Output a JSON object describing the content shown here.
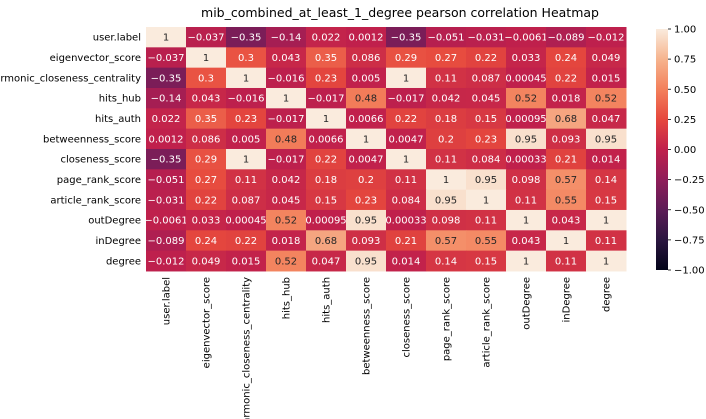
{
  "chart_data": {
    "type": "heatmap",
    "title": "mib_combined_at_least_1_degree pearson correlation Heatmap",
    "rows": [
      "user.label",
      "eigenvector_score",
      "harmonic_closeness_centrality",
      "hits_hub",
      "hits_auth",
      "betweenness_score",
      "closeness_score",
      "page_rank_score",
      "article_rank_score",
      "outDegree",
      "inDegree",
      "degree"
    ],
    "columns": [
      "user.label",
      "eigenvector_score",
      "harmonic_closeness_centrality",
      "hits_hub",
      "hits_auth",
      "betweenness_score",
      "closeness_score",
      "page_rank_score",
      "article_rank_score",
      "outDegree",
      "inDegree",
      "degree"
    ],
    "values": [
      [
        1,
        -0.037,
        -0.35,
        -0.14,
        0.022,
        0.0012,
        -0.35,
        -0.051,
        -0.031,
        -0.0061,
        -0.089,
        -0.012
      ],
      [
        -0.037,
        1,
        0.3,
        0.043,
        0.35,
        0.086,
        0.29,
        0.27,
        0.22,
        0.033,
        0.24,
        0.049
      ],
      [
        -0.35,
        0.3,
        1,
        -0.016,
        0.23,
        0.005,
        1,
        0.11,
        0.087,
        0.00045,
        0.22,
        0.015
      ],
      [
        -0.14,
        0.043,
        -0.016,
        1,
        -0.017,
        0.48,
        -0.017,
        0.042,
        0.045,
        0.52,
        0.018,
        0.52
      ],
      [
        0.022,
        0.35,
        0.23,
        -0.017,
        1,
        0.0066,
        0.22,
        0.18,
        0.15,
        0.00095,
        0.68,
        0.047
      ],
      [
        0.0012,
        0.086,
        0.005,
        0.48,
        0.0066,
        1,
        0.0047,
        0.2,
        0.23,
        0.95,
        0.093,
        0.95
      ],
      [
        -0.35,
        0.29,
        1,
        -0.017,
        0.22,
        0.0047,
        1,
        0.11,
        0.084,
        0.00033,
        0.21,
        0.014
      ],
      [
        -0.051,
        0.27,
        0.11,
        0.042,
        0.18,
        0.2,
        0.11,
        1,
        0.95,
        0.098,
        0.57,
        0.14
      ],
      [
        -0.031,
        0.22,
        0.087,
        0.045,
        0.15,
        0.23,
        0.084,
        0.95,
        1,
        0.11,
        0.55,
        0.15
      ],
      [
        -0.0061,
        0.033,
        0.00045,
        0.52,
        0.00095,
        0.95,
        0.00033,
        0.098,
        0.11,
        1,
        0.043,
        1
      ],
      [
        -0.089,
        0.24,
        0.22,
        0.018,
        0.68,
        0.093,
        0.21,
        0.57,
        0.55,
        0.043,
        1,
        0.11
      ],
      [
        -0.012,
        0.049,
        0.015,
        0.52,
        0.047,
        0.95,
        0.014,
        0.14,
        0.15,
        1,
        0.11,
        1
      ]
    ],
    "value_range": [
      -1,
      1
    ],
    "colormap": "rocket",
    "colorbar_ticks": [
      "1.00",
      "0.75",
      "0.50",
      "0.25",
      "0.00",
      "−0.25",
      "−0.50",
      "−0.75",
      "−1.00"
    ],
    "colorbar_tick_values": [
      1,
      0.75,
      0.5,
      0.25,
      0,
      -0.25,
      -0.5,
      -0.75,
      -1
    ],
    "legend": "right",
    "grid": false
  }
}
